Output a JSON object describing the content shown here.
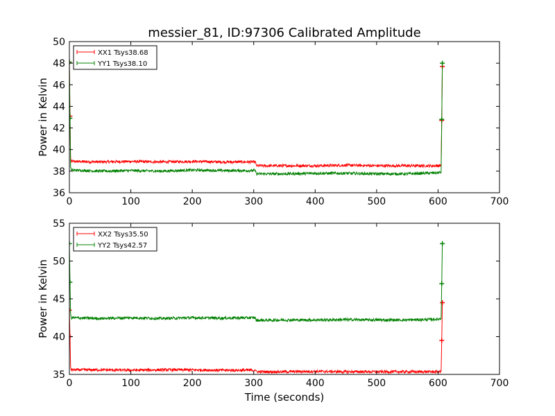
{
  "figure": {
    "title": "messier_81, ID:97306 Calibrated Amplitude",
    "xlabel": "Time (seconds)"
  },
  "colors": {
    "red": "#ff0000",
    "green": "#008000"
  },
  "chart_data": [
    {
      "type": "line",
      "ylabel": "Power in Kelvin",
      "xlim": [
        0,
        700
      ],
      "ylim": [
        36,
        50
      ],
      "xticks": [
        0,
        100,
        200,
        300,
        400,
        500,
        600,
        700
      ],
      "yticks": [
        36,
        38,
        40,
        42,
        44,
        46,
        48,
        50
      ],
      "legend": "top-left",
      "grid": false,
      "series": [
        {
          "name": "XX1 Tsys38.68",
          "color": "#ff0000",
          "x": [
            0,
            1,
            2,
            3,
            50,
            100,
            150,
            200,
            250,
            303,
            304,
            350,
            400,
            450,
            500,
            550,
            600,
            605,
            606,
            607
          ],
          "y": [
            48.1,
            43.1,
            39.2,
            38.9,
            38.85,
            38.9,
            38.85,
            38.9,
            38.85,
            38.85,
            38.5,
            38.5,
            38.5,
            38.55,
            38.5,
            38.5,
            38.5,
            38.55,
            42.7,
            47.7
          ]
        },
        {
          "name": "YY1 Tsys38.10",
          "color": "#008000",
          "x": [
            0,
            1,
            2,
            3,
            50,
            100,
            150,
            200,
            250,
            303,
            304,
            350,
            400,
            450,
            500,
            550,
            600,
            605,
            606,
            607
          ],
          "y": [
            48.1,
            42.9,
            38.4,
            38.1,
            38.0,
            38.05,
            38.0,
            38.1,
            38.05,
            38.05,
            37.75,
            37.75,
            37.8,
            37.8,
            37.75,
            37.75,
            37.85,
            37.9,
            42.8,
            48.0
          ]
        }
      ]
    },
    {
      "type": "line",
      "ylabel": "Power in Kelvin",
      "xlim": [
        0,
        700
      ],
      "ylim": [
        35,
        55
      ],
      "xticks": [
        0,
        100,
        200,
        300,
        400,
        500,
        600,
        700
      ],
      "yticks": [
        35,
        40,
        45,
        50,
        55
      ],
      "legend": "top-left",
      "grid": false,
      "series": [
        {
          "name": "XX2 Tsys35.50",
          "color": "#ff0000",
          "x": [
            0,
            1,
            2,
            3,
            50,
            100,
            150,
            200,
            250,
            303,
            304,
            350,
            400,
            450,
            500,
            550,
            600,
            605,
            606,
            607
          ],
          "y": [
            43.5,
            40.0,
            36.0,
            35.6,
            35.6,
            35.55,
            35.6,
            35.6,
            35.55,
            35.55,
            35.35,
            35.35,
            35.4,
            35.35,
            35.35,
            35.35,
            35.35,
            35.35,
            39.5,
            44.5
          ]
        },
        {
          "name": "YY2 Tsys42.57",
          "color": "#008000",
          "x": [
            0,
            1,
            2,
            3,
            50,
            100,
            150,
            200,
            250,
            303,
            304,
            350,
            400,
            450,
            500,
            550,
            600,
            605,
            606,
            607
          ],
          "y": [
            52.3,
            47.2,
            43.0,
            42.5,
            42.4,
            42.5,
            42.4,
            42.5,
            42.45,
            42.5,
            42.15,
            42.2,
            42.2,
            42.25,
            42.2,
            42.2,
            42.3,
            42.4,
            47.0,
            52.3
          ]
        }
      ]
    }
  ]
}
